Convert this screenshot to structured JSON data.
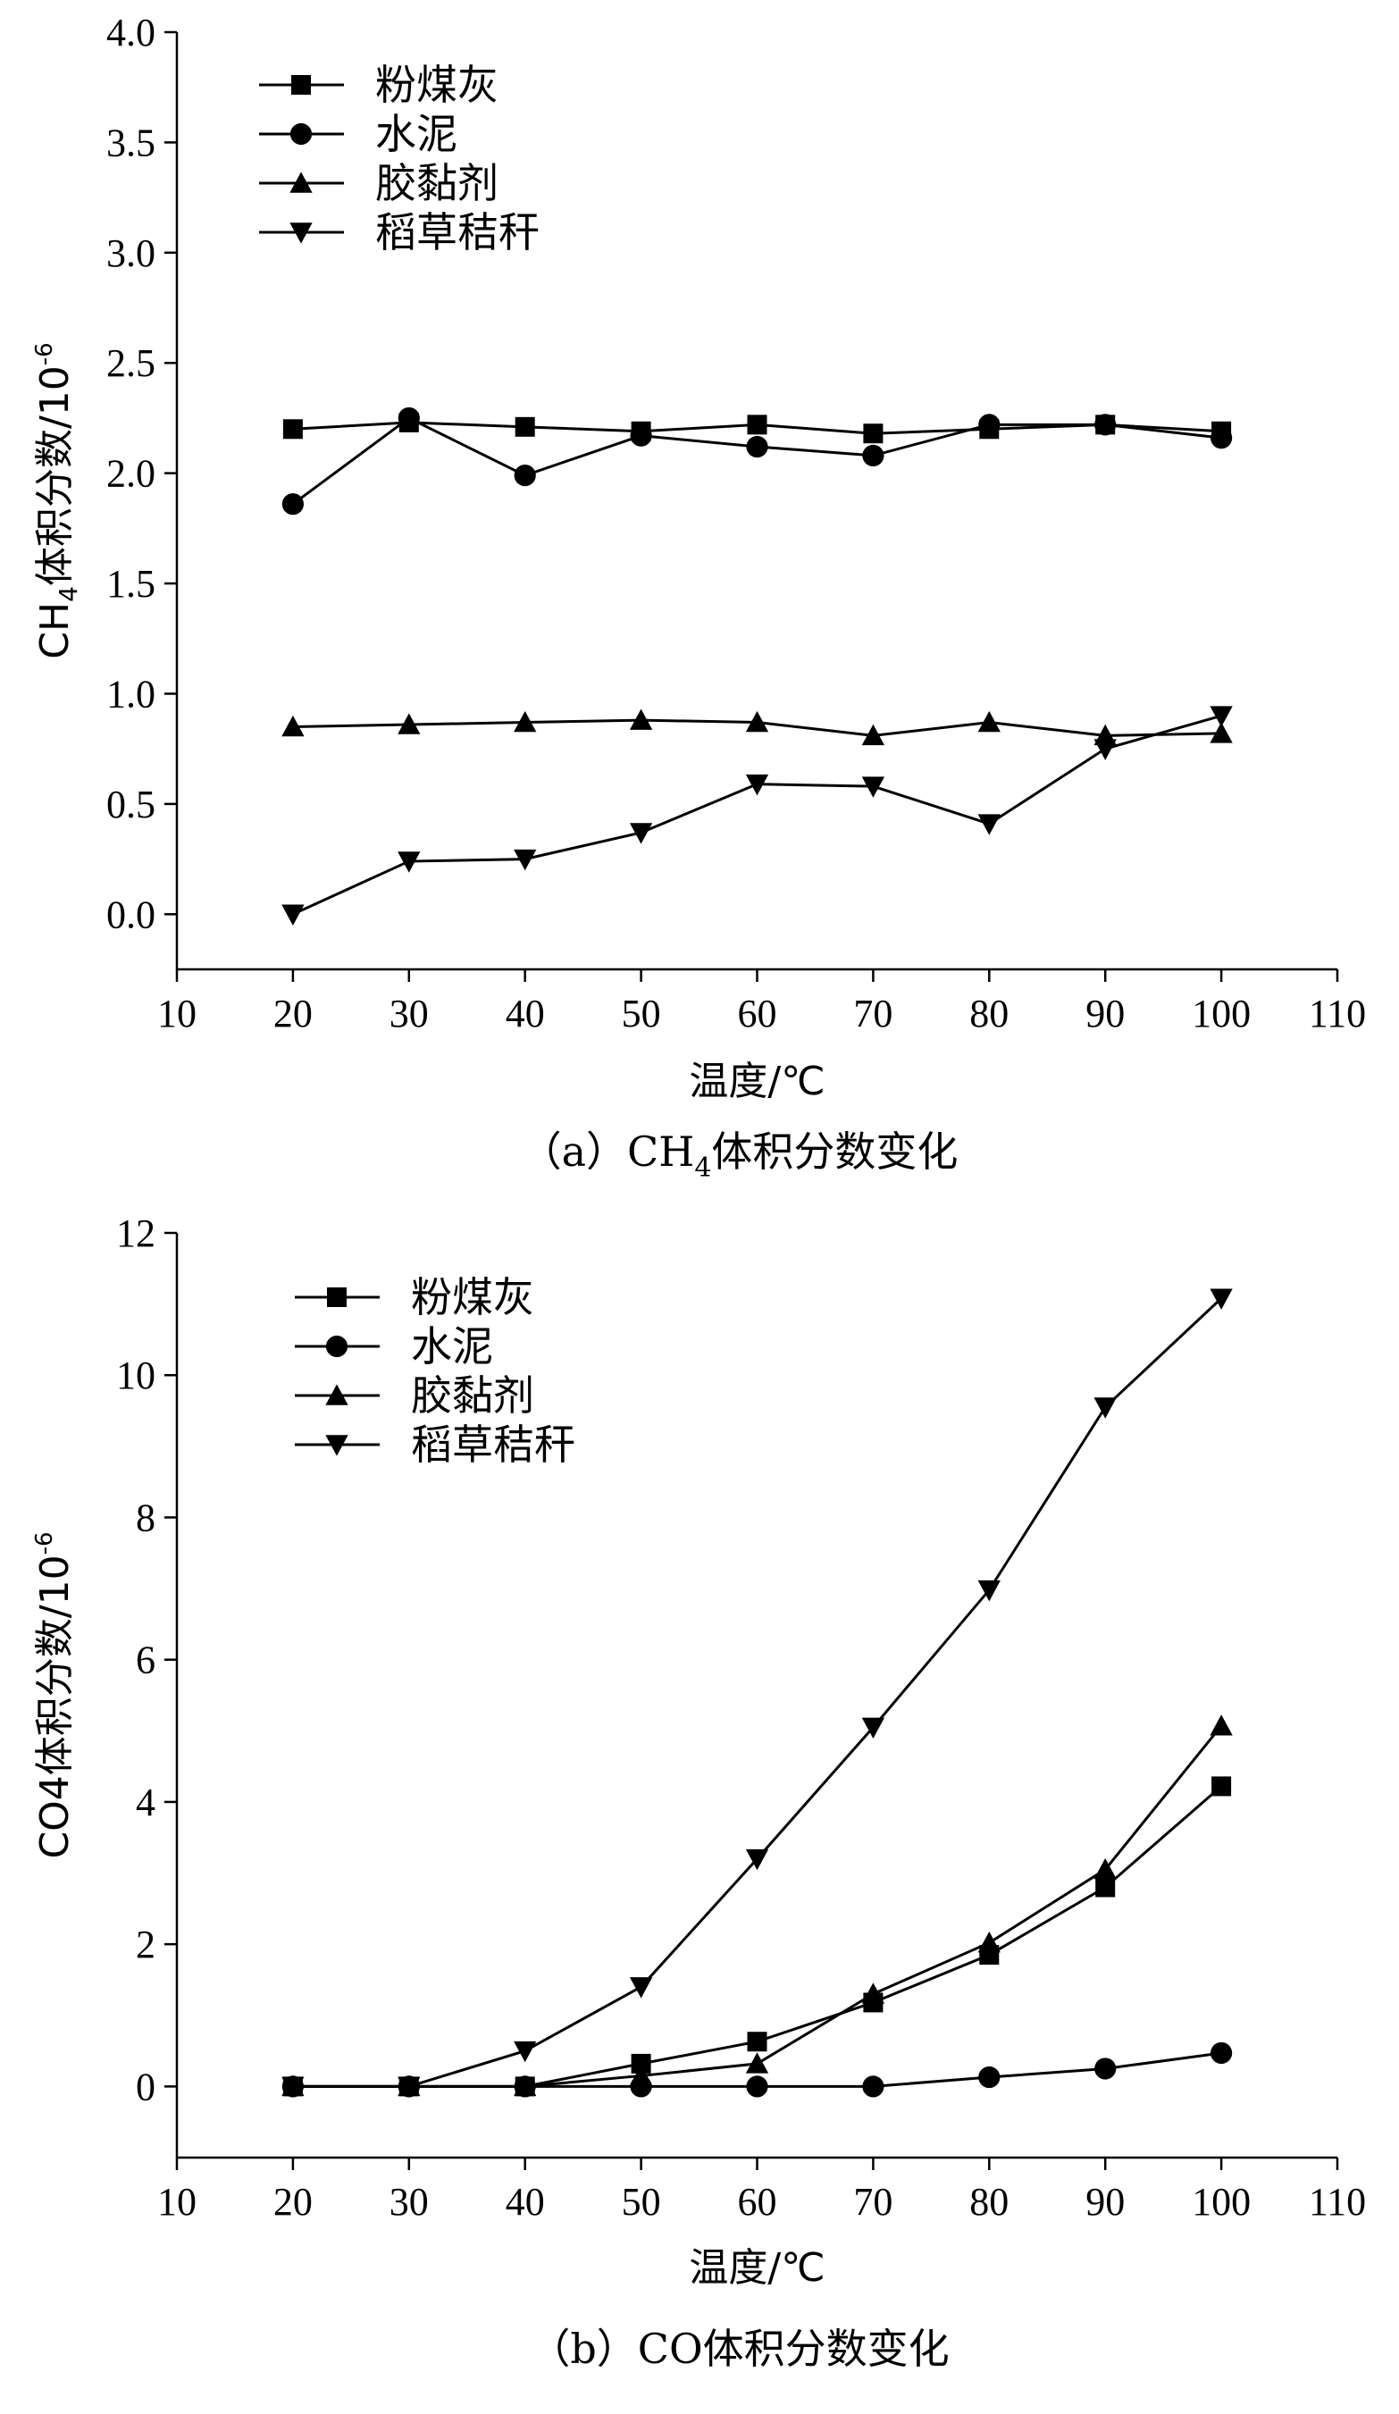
{
  "chart_data": [
    {
      "type": "line",
      "id": "a",
      "ylabel": "CH4体积分数/10-6",
      "ylabel_parts": {
        "pre": "CH",
        "sub": "4",
        "mid": "体积分数/10",
        "sup": "-6"
      },
      "xlabel": "温度/℃",
      "caption": "（a）CH4体积分数变化",
      "caption_parts": {
        "pre": "（a）CH",
        "sub": "4",
        "post": "体积分数变化"
      },
      "xlim": [
        10,
        110
      ],
      "ylim": [
        -0.25,
        4.0
      ],
      "xticks": [
        10,
        20,
        30,
        40,
        50,
        60,
        70,
        80,
        90,
        100,
        110
      ],
      "yticks": [
        0.0,
        0.5,
        1.0,
        1.5,
        2.0,
        2.5,
        3.0,
        3.5,
        4.0
      ],
      "ytick_decimals": 1,
      "legend_position": "top-left",
      "x": [
        20,
        30,
        40,
        50,
        60,
        70,
        80,
        90,
        100
      ],
      "series": [
        {
          "name": "粉煤灰",
          "marker": "square",
          "values": [
            2.2,
            2.23,
            2.21,
            2.19,
            2.22,
            2.18,
            2.2,
            2.22,
            2.19
          ]
        },
        {
          "name": "水泥",
          "marker": "circle",
          "values": [
            1.86,
            2.25,
            1.99,
            2.17,
            2.12,
            2.08,
            2.22,
            2.22,
            2.16
          ]
        },
        {
          "name": "胶黏剂",
          "marker": "triangle-up",
          "values": [
            0.85,
            0.86,
            0.87,
            0.88,
            0.87,
            0.81,
            0.87,
            0.81,
            0.82
          ]
        },
        {
          "name": "稻草秸秆",
          "marker": "triangle-down",
          "values": [
            0.0,
            0.24,
            0.25,
            0.37,
            0.59,
            0.58,
            0.41,
            0.75,
            0.9
          ]
        }
      ]
    },
    {
      "type": "line",
      "id": "b",
      "ylabel": "CO4体积分数/10-6",
      "ylabel_parts": {
        "pre": "",
        "sub": "",
        "mid": "CO4体积分数/10",
        "sup": "-6"
      },
      "xlabel": "温度/℃",
      "caption": "（b）CO体积分数变化",
      "caption_parts": {
        "pre": "（b）CO体积分数变化",
        "sub": "",
        "post": ""
      },
      "xlim": [
        10,
        110
      ],
      "ylim": [
        -1,
        12
      ],
      "xticks": [
        10,
        20,
        30,
        40,
        50,
        60,
        70,
        80,
        90,
        100,
        110
      ],
      "yticks": [
        0,
        2,
        4,
        6,
        8,
        10,
        12
      ],
      "ytick_decimals": 0,
      "legend_position": "top-left",
      "x": [
        20,
        30,
        40,
        50,
        60,
        70,
        80,
        90,
        100
      ],
      "series": [
        {
          "name": "粉煤灰",
          "marker": "square",
          "values": [
            0,
            0,
            0,
            0.32,
            0.63,
            1.18,
            1.85,
            2.8,
            4.22
          ]
        },
        {
          "name": "水泥",
          "marker": "circle",
          "values": [
            0,
            0,
            0,
            0,
            0,
            0,
            0.13,
            0.25,
            0.47
          ]
        },
        {
          "name": "胶黏剂",
          "marker": "triangle-up",
          "values": [
            0,
            0,
            0,
            0.15,
            0.32,
            1.3,
            2.02,
            3.05,
            5.07
          ]
        },
        {
          "name": "稻草秸秆",
          "marker": "triangle-down",
          "values": [
            0,
            0,
            0.5,
            1.4,
            3.2,
            5.05,
            6.98,
            9.55,
            11.08
          ]
        }
      ]
    }
  ]
}
